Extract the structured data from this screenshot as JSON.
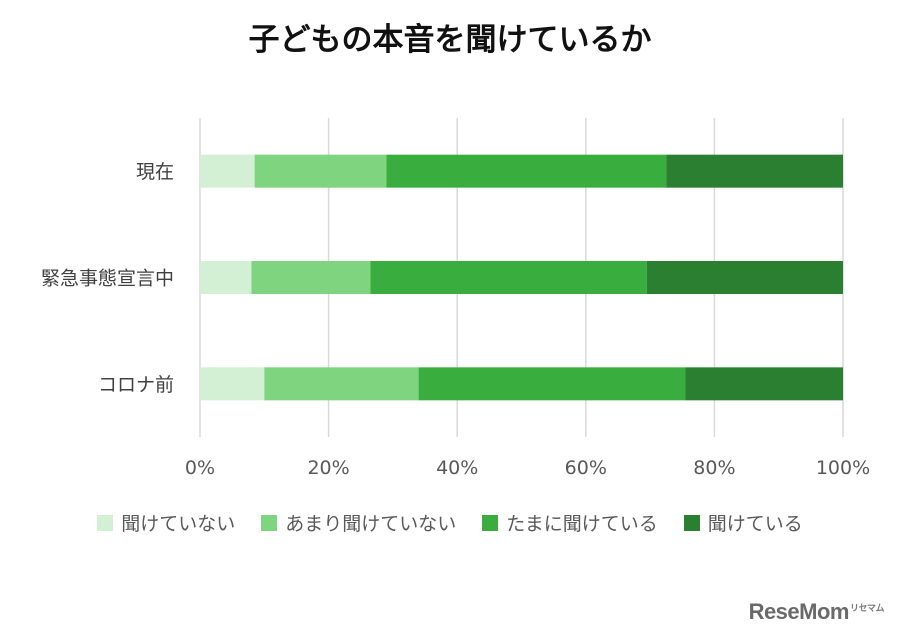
{
  "chart_data": {
    "type": "bar",
    "orientation": "horizontal",
    "stacked": true,
    "percent": true,
    "title": "子どもの本音を聞けているか",
    "categories": [
      "現在",
      "緊急事態宣言中",
      "コロナ前"
    ],
    "series": [
      {
        "name": "聞けていない",
        "color": "#d4f0d4",
        "values": [
          8.5,
          8,
          10
        ]
      },
      {
        "name": "あまり聞けていない",
        "color": "#7fd47f",
        "values": [
          20.5,
          18.5,
          24
        ]
      },
      {
        "name": "たまに聞けている",
        "color": "#39ad3d",
        "values": [
          43.5,
          43,
          41.5
        ]
      },
      {
        "name": "聞けている",
        "color": "#2a7f30",
        "values": [
          27.5,
          30.5,
          24.5
        ]
      }
    ],
    "xlim": [
      0,
      100
    ],
    "xticks": [
      "0%",
      "20%",
      "40%",
      "60%",
      "80%",
      "100%"
    ],
    "grid": true,
    "legend_position": "bottom"
  },
  "logo": {
    "text": "ReseMom",
    "accent": "リセマム"
  }
}
